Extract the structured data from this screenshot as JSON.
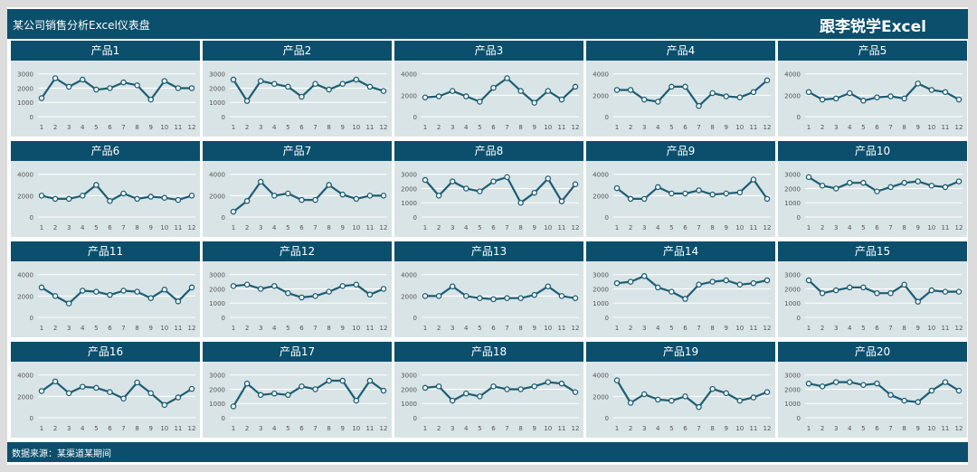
{
  "header": {
    "title": "某公司销售分析Excel仪表盘",
    "brand": "跟李锐学Excel"
  },
  "footer": {
    "source": "数据来源：某渠道某期间"
  },
  "colors": {
    "header_bg": "#0b4f6c",
    "panel_bg": "#d9e4e6",
    "line": "#1c5d74",
    "marker_fill": "#ffffff",
    "gridline": "#ffffff"
  },
  "chart_data": [
    {
      "type": "line",
      "title": "产品1",
      "categories": [
        "1",
        "2",
        "3",
        "4",
        "5",
        "6",
        "7",
        "8",
        "9",
        "10",
        "11",
        "12"
      ],
      "yticks": [
        "0",
        "1000",
        "2000",
        "3000"
      ],
      "ylim": [
        0,
        3300
      ],
      "values": [
        1300,
        2700,
        2100,
        2600,
        1900,
        2000,
        2400,
        2200,
        1200,
        2500,
        2000,
        2000
      ]
    },
    {
      "type": "line",
      "title": "产品2",
      "categories": [
        "1",
        "2",
        "3",
        "4",
        "5",
        "6",
        "7",
        "8",
        "9",
        "10",
        "11",
        "12"
      ],
      "yticks": [
        "0",
        "1000",
        "2000",
        "3000"
      ],
      "ylim": [
        0,
        3300
      ],
      "values": [
        2600,
        1100,
        2500,
        2300,
        2100,
        1400,
        2300,
        1900,
        2300,
        2600,
        2100,
        1800
      ]
    },
    {
      "type": "line",
      "title": "产品3",
      "categories": [
        "1",
        "2",
        "3",
        "4",
        "5",
        "6",
        "7",
        "8",
        "9",
        "10",
        "11",
        "12"
      ],
      "yticks": [
        "0",
        "2000",
        "4000"
      ],
      "ylim": [
        0,
        4400
      ],
      "values": [
        1800,
        1900,
        2400,
        1900,
        1400,
        2700,
        3600,
        2400,
        1300,
        2400,
        1600,
        2800
      ]
    },
    {
      "type": "line",
      "title": "产品4",
      "categories": [
        "1",
        "2",
        "3",
        "4",
        "5",
        "6",
        "7",
        "8",
        "9",
        "10",
        "11",
        "12"
      ],
      "yticks": [
        "0",
        "2000",
        "4000"
      ],
      "ylim": [
        0,
        4400
      ],
      "values": [
        2500,
        2500,
        1600,
        1400,
        2800,
        2800,
        1000,
        2200,
        1900,
        1800,
        2300,
        3400
      ]
    },
    {
      "type": "line",
      "title": "产品5",
      "categories": [
        "1",
        "2",
        "3",
        "4",
        "5",
        "6",
        "7",
        "8",
        "9",
        "10",
        "11",
        "12"
      ],
      "yticks": [
        "0",
        "2000",
        "4000"
      ],
      "ylim": [
        0,
        4400
      ],
      "values": [
        2300,
        1600,
        1700,
        2200,
        1500,
        1800,
        1900,
        1700,
        3100,
        2500,
        2300,
        1600
      ]
    },
    {
      "type": "line",
      "title": "产品6",
      "categories": [
        "1",
        "2",
        "3",
        "4",
        "5",
        "6",
        "7",
        "8",
        "9",
        "10",
        "11",
        "12"
      ],
      "yticks": [
        "0",
        "2000",
        "4000"
      ],
      "ylim": [
        0,
        4400
      ],
      "values": [
        2000,
        1700,
        1700,
        2000,
        3000,
        1500,
        2200,
        1700,
        1900,
        1800,
        1600,
        2000
      ]
    },
    {
      "type": "line",
      "title": "产品7",
      "categories": [
        "1",
        "2",
        "3",
        "4",
        "5",
        "6",
        "7",
        "8",
        "9",
        "10",
        "11",
        "12"
      ],
      "yticks": [
        "0",
        "2000",
        "4000"
      ],
      "ylim": [
        0,
        4400
      ],
      "values": [
        500,
        1500,
        3300,
        2000,
        2200,
        1600,
        1600,
        3000,
        2100,
        1700,
        2000,
        2000
      ]
    },
    {
      "type": "line",
      "title": "产品8",
      "categories": [
        "1",
        "2",
        "3",
        "4",
        "5",
        "6",
        "7",
        "8",
        "9",
        "10",
        "11",
        "12"
      ],
      "yticks": [
        "0",
        "1000",
        "2000",
        "3000"
      ],
      "ylim": [
        0,
        3300
      ],
      "values": [
        2600,
        1500,
        2500,
        2000,
        1800,
        2500,
        2800,
        1000,
        1700,
        2700,
        1100,
        2300
      ]
    },
    {
      "type": "line",
      "title": "产品9",
      "categories": [
        "1",
        "2",
        "3",
        "4",
        "5",
        "6",
        "7",
        "8",
        "9",
        "10",
        "11",
        "12"
      ],
      "yticks": [
        "0",
        "2000",
        "4000"
      ],
      "ylim": [
        0,
        4400
      ],
      "values": [
        2700,
        1700,
        1700,
        2800,
        2200,
        2200,
        2500,
        2100,
        2200,
        2300,
        3500,
        1700
      ]
    },
    {
      "type": "line",
      "title": "产品10",
      "categories": [
        "1",
        "2",
        "3",
        "4",
        "5",
        "6",
        "7",
        "8",
        "9",
        "10",
        "11",
        "12"
      ],
      "yticks": [
        "0",
        "1000",
        "2000",
        "3000"
      ],
      "ylim": [
        0,
        3300
      ],
      "values": [
        2800,
        2200,
        2000,
        2400,
        2400,
        1800,
        2100,
        2400,
        2500,
        2200,
        2100,
        2500
      ]
    },
    {
      "type": "line",
      "title": "产品11",
      "categories": [
        "1",
        "2",
        "3",
        "4",
        "5",
        "6",
        "7",
        "8",
        "9",
        "10",
        "11",
        "12"
      ],
      "yticks": [
        "0",
        "2000",
        "4000"
      ],
      "ylim": [
        0,
        4400
      ],
      "values": [
        2800,
        2000,
        1300,
        2500,
        2400,
        2100,
        2500,
        2400,
        1800,
        2600,
        1500,
        2800
      ]
    },
    {
      "type": "line",
      "title": "产品12",
      "categories": [
        "1",
        "2",
        "3",
        "4",
        "5",
        "6",
        "7",
        "8",
        "9",
        "10",
        "11",
        "12"
      ],
      "yticks": [
        "0",
        "1000",
        "2000",
        "3000"
      ],
      "ylim": [
        0,
        3300
      ],
      "values": [
        2200,
        2300,
        2000,
        2200,
        1700,
        1400,
        1500,
        1800,
        2200,
        2300,
        1600,
        2000
      ]
    },
    {
      "type": "line",
      "title": "产品13",
      "categories": [
        "1",
        "2",
        "3",
        "4",
        "5",
        "6",
        "7",
        "8",
        "9",
        "10",
        "11",
        "12"
      ],
      "yticks": [
        "0",
        "2000",
        "4000"
      ],
      "ylim": [
        0,
        4400
      ],
      "values": [
        2000,
        2000,
        2900,
        2000,
        1800,
        1700,
        1800,
        1800,
        2100,
        2900,
        2000,
        1800
      ]
    },
    {
      "type": "line",
      "title": "产品14",
      "categories": [
        "1",
        "2",
        "3",
        "4",
        "5",
        "6",
        "7",
        "8",
        "9",
        "10",
        "11",
        "12"
      ],
      "yticks": [
        "0",
        "1000",
        "2000",
        "3000"
      ],
      "ylim": [
        0,
        3300
      ],
      "values": [
        2400,
        2500,
        2900,
        2100,
        1800,
        1300,
        2300,
        2500,
        2600,
        2300,
        2400,
        2600
      ]
    },
    {
      "type": "line",
      "title": "产品15",
      "categories": [
        "1",
        "2",
        "3",
        "4",
        "5",
        "6",
        "7",
        "8",
        "9",
        "10",
        "11",
        "12"
      ],
      "yticks": [
        "0",
        "1000",
        "2000",
        "3000"
      ],
      "ylim": [
        0,
        3300
      ],
      "values": [
        2600,
        1700,
        1900,
        2100,
        2100,
        1700,
        1700,
        2300,
        1100,
        1900,
        1800,
        1800
      ]
    },
    {
      "type": "line",
      "title": "产品16",
      "categories": [
        "1",
        "2",
        "3",
        "4",
        "5",
        "6",
        "7",
        "8",
        "9",
        "10",
        "11",
        "12"
      ],
      "yticks": [
        "0",
        "2000",
        "4000"
      ],
      "ylim": [
        0,
        4400
      ],
      "values": [
        2500,
        3400,
        2300,
        2900,
        2800,
        2400,
        1800,
        3300,
        2300,
        1200,
        1900,
        2700
      ]
    },
    {
      "type": "line",
      "title": "产品17",
      "categories": [
        "1",
        "2",
        "3",
        "4",
        "5",
        "6",
        "7",
        "8",
        "9",
        "10",
        "11",
        "12"
      ],
      "yticks": [
        "0",
        "1000",
        "2000",
        "3000"
      ],
      "ylim": [
        0,
        3300
      ],
      "values": [
        800,
        2400,
        1600,
        1700,
        1600,
        2200,
        2000,
        2600,
        2600,
        1200,
        2600,
        1900
      ]
    },
    {
      "type": "line",
      "title": "产品18",
      "categories": [
        "1",
        "2",
        "3",
        "4",
        "5",
        "6",
        "7",
        "8",
        "9",
        "10",
        "11",
        "12"
      ],
      "yticks": [
        "0",
        "1000",
        "2000",
        "3000"
      ],
      "ylim": [
        0,
        3300
      ],
      "values": [
        2100,
        2200,
        1200,
        1700,
        1500,
        2200,
        2000,
        2000,
        2200,
        2500,
        2400,
        1800
      ]
    },
    {
      "type": "line",
      "title": "产品19",
      "categories": [
        "1",
        "2",
        "3",
        "4",
        "5",
        "6",
        "7",
        "8",
        "9",
        "10",
        "11",
        "12"
      ],
      "yticks": [
        "0",
        "2000",
        "4000"
      ],
      "ylim": [
        0,
        4400
      ],
      "values": [
        3500,
        1400,
        2200,
        1700,
        1600,
        2000,
        1000,
        2700,
        2300,
        1600,
        1900,
        2400
      ]
    },
    {
      "type": "line",
      "title": "产品20",
      "categories": [
        "1",
        "2",
        "3",
        "4",
        "5",
        "6",
        "7",
        "8",
        "9",
        "10",
        "11",
        "12"
      ],
      "yticks": [
        "0",
        "1000",
        "2000",
        "3000"
      ],
      "ylim": [
        0,
        3300
      ],
      "values": [
        2400,
        2200,
        2500,
        2500,
        2300,
        2400,
        1600,
        1200,
        1100,
        1900,
        2500,
        1900
      ]
    }
  ]
}
